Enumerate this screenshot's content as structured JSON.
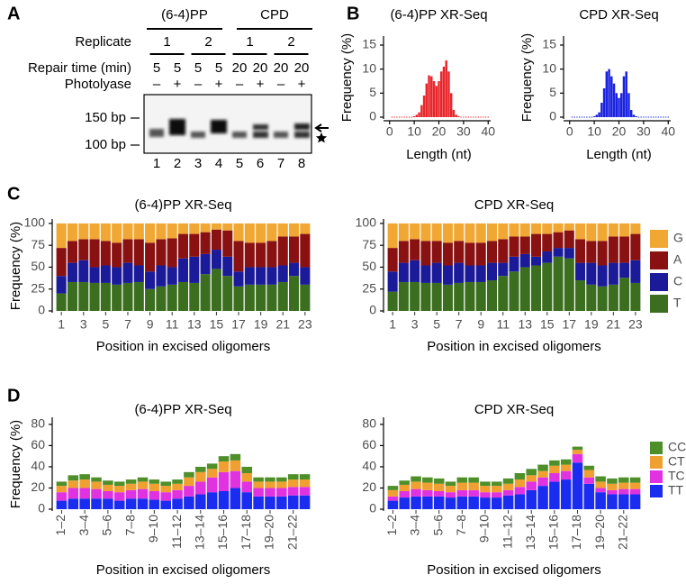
{
  "panel_labels": [
    "A",
    "B",
    "C",
    "D"
  ],
  "gel": {
    "groups": [
      "(6-4)PP",
      "CPD"
    ],
    "replicate_label": "Replicate",
    "replicates": [
      "1",
      "2",
      "1",
      "2"
    ],
    "time_label": "Repair time (min)",
    "times": [
      5,
      5,
      5,
      5,
      20,
      20,
      20,
      20
    ],
    "photolyase_label": "Photolyase",
    "photolyase": [
      "–",
      "+",
      "–",
      "+",
      "–",
      "+",
      "–",
      "+"
    ],
    "markers": [
      "150 bp",
      "100 bp"
    ],
    "lanes": [
      1,
      2,
      3,
      4,
      5,
      6,
      7,
      8
    ]
  },
  "chart_data": [
    {
      "type": "histogram",
      "title": "(6-4)PP XR-Seq",
      "xlabel": "Length (nt)",
      "ylabel": "Frequency (%)",
      "x": [
        1,
        2,
        3,
        4,
        5,
        6,
        7,
        8,
        9,
        10,
        11,
        12,
        13,
        14,
        15,
        16,
        17,
        18,
        19,
        20,
        21,
        22,
        23,
        24,
        25,
        26,
        27,
        28,
        29,
        30,
        31,
        32,
        33,
        34,
        35,
        36,
        37,
        38,
        39,
        40
      ],
      "values": [
        0,
        0,
        0,
        0,
        0,
        0,
        0,
        0,
        0,
        0.2,
        0.5,
        1,
        2.5,
        4.5,
        7,
        8.7,
        8.5,
        7.5,
        6.5,
        7.5,
        9.5,
        10.5,
        11.8,
        9.5,
        5,
        1.5,
        0.5,
        0.2,
        0,
        0,
        0,
        0,
        0,
        0,
        0,
        0,
        0,
        0,
        0,
        0
      ],
      "color": "#e8262b",
      "xlim": [
        -1,
        41
      ],
      "xticks": [
        0,
        10,
        20,
        30,
        40
      ],
      "ylim": [
        0,
        16.5
      ],
      "yticks": [
        0,
        5,
        10,
        15
      ]
    },
    {
      "type": "histogram",
      "title": "CPD XR-Seq",
      "xlabel": "Length (nt)",
      "ylabel": "Frequency (%)",
      "x": [
        1,
        2,
        3,
        4,
        5,
        6,
        7,
        8,
        9,
        10,
        11,
        12,
        13,
        14,
        15,
        16,
        17,
        18,
        19,
        20,
        21,
        22,
        23,
        24,
        25,
        26,
        27,
        28,
        29,
        30,
        31,
        32,
        33,
        34,
        35,
        36,
        37,
        38,
        39,
        40
      ],
      "values": [
        0,
        0,
        0,
        0,
        0,
        0,
        0,
        0,
        0,
        0.2,
        0.5,
        1,
        3,
        6,
        9.5,
        10,
        8.5,
        7,
        5,
        4,
        5,
        8.5,
        9.5,
        5,
        1.5,
        0.5,
        0.2,
        0,
        0,
        0,
        0,
        0,
        0,
        0,
        0,
        0,
        0,
        0,
        0,
        0
      ],
      "color": "#1a22e0",
      "xlim": [
        -1,
        41
      ],
      "xticks": [
        0,
        10,
        20,
        30,
        40
      ],
      "ylim": [
        0,
        16.5
      ],
      "yticks": [
        0,
        5,
        10,
        15
      ]
    },
    {
      "type": "stacked_bar",
      "title": "(6-4)PP XR-Seq",
      "xlabel": "Position in excised oligomers",
      "ylabel": "Frequency (%)",
      "categories": [
        1,
        null,
        3,
        null,
        5,
        null,
        7,
        null,
        9,
        null,
        11,
        null,
        13,
        null,
        15,
        null,
        17,
        null,
        19,
        null,
        21,
        null,
        23
      ],
      "series": [
        {
          "color": "#3b6f1f",
          "values": [
            20,
            33,
            33,
            32,
            32,
            30,
            32,
            33,
            25,
            28,
            30,
            33,
            32,
            42,
            48,
            40,
            28,
            30,
            30,
            30,
            33,
            40,
            30
          ]
        },
        {
          "color": "#1b1b9a",
          "values": [
            20,
            22,
            25,
            18,
            20,
            20,
            23,
            19,
            20,
            24,
            20,
            27,
            30,
            23,
            22,
            22,
            17,
            20,
            20,
            20,
            19,
            15,
            20
          ]
        },
        {
          "color": "#8a1111",
          "values": [
            32,
            25,
            24,
            32,
            28,
            28,
            27,
            30,
            33,
            30,
            33,
            28,
            26,
            25,
            23,
            30,
            35,
            28,
            28,
            30,
            33,
            30,
            38
          ]
        },
        {
          "color": "#f0a733",
          "values": [
            28,
            20,
            18,
            18,
            20,
            22,
            18,
            18,
            22,
            18,
            17,
            12,
            12,
            10,
            7,
            8,
            20,
            22,
            22,
            20,
            15,
            15,
            12
          ]
        }
      ],
      "ylim": [
        0,
        103
      ],
      "yticks": [
        0,
        25,
        50,
        75,
        100
      ]
    },
    {
      "type": "stacked_bar",
      "title": "CPD XR-Seq",
      "xlabel": "Position in excised oligomers",
      "categories": [
        1,
        null,
        3,
        null,
        5,
        null,
        7,
        null,
        9,
        null,
        11,
        null,
        13,
        null,
        15,
        null,
        17,
        null,
        19,
        null,
        21,
        null,
        23
      ],
      "series": [
        {
          "name": "T",
          "color": "#3b6f1f",
          "values": [
            22,
            33,
            33,
            32,
            32,
            30,
            32,
            33,
            33,
            35,
            40,
            45,
            50,
            52,
            55,
            62,
            60,
            35,
            30,
            28,
            30,
            38,
            32
          ]
        },
        {
          "name": "C",
          "color": "#1b1b9a",
          "values": [
            23,
            22,
            25,
            20,
            23,
            22,
            23,
            19,
            19,
            20,
            15,
            17,
            15,
            10,
            13,
            10,
            12,
            20,
            25,
            24,
            25,
            17,
            26
          ]
        },
        {
          "name": "A",
          "color": "#8a1111",
          "values": [
            27,
            25,
            24,
            28,
            25,
            26,
            25,
            26,
            26,
            25,
            27,
            23,
            20,
            26,
            20,
            18,
            20,
            27,
            25,
            28,
            30,
            30,
            30
          ]
        },
        {
          "name": "G",
          "color": "#f0a733",
          "values": [
            28,
            20,
            18,
            20,
            20,
            22,
            20,
            22,
            22,
            20,
            18,
            15,
            15,
            12,
            12,
            10,
            8,
            18,
            20,
            20,
            15,
            15,
            12
          ]
        }
      ],
      "ylim": [
        0,
        103
      ],
      "yticks": [
        0,
        25,
        50,
        75,
        100
      ],
      "legend": "right"
    },
    {
      "type": "stacked_bar",
      "title": "(6-4)PP XR-Seq",
      "xlabel": "Position in excised oligomers",
      "ylabel": "Frequency (%)",
      "categories": [
        "1–2",
        null,
        "3–4",
        null,
        "5–6",
        null,
        "7–8",
        null,
        "9–10",
        null,
        "11–12",
        null,
        "13–14",
        null,
        "15–16",
        null,
        "17–18",
        null,
        "19–20",
        null,
        "21–22",
        null
      ],
      "series": [
        {
          "color": "#1a2cf0",
          "values": [
            8,
            10,
            10,
            10,
            10,
            8,
            10,
            10,
            9,
            8,
            10,
            12,
            14,
            16,
            17,
            20,
            16,
            12,
            12,
            12,
            13,
            13
          ]
        },
        {
          "color": "#e032e0",
          "values": [
            8,
            10,
            10,
            9,
            7,
            8,
            8,
            9,
            8,
            8,
            8,
            10,
            12,
            14,
            18,
            16,
            10,
            8,
            8,
            8,
            8,
            8
          ]
        },
        {
          "color": "#f0a030",
          "values": [
            6,
            7,
            8,
            7,
            6,
            6,
            6,
            7,
            7,
            6,
            6,
            8,
            9,
            8,
            10,
            10,
            8,
            6,
            6,
            6,
            7,
            7
          ]
        },
        {
          "color": "#4e8f2a",
          "values": [
            4,
            5,
            5,
            4,
            4,
            4,
            4,
            4,
            4,
            4,
            4,
            5,
            5,
            5,
            5,
            6,
            6,
            4,
            4,
            4,
            5,
            5
          ]
        }
      ],
      "ylim": [
        0,
        85
      ],
      "yticks": [
        0,
        20,
        40,
        60,
        80
      ]
    },
    {
      "type": "stacked_bar",
      "title": "CPD XR-Seq",
      "xlabel": "Position in excised oligomers",
      "categories": [
        "1–2",
        null,
        "3–4",
        null,
        "5–6",
        null,
        "7–8",
        null,
        "9–10",
        null,
        "11–12",
        null,
        "13–14",
        null,
        "15–16",
        null,
        "17–18",
        null,
        "19–20",
        null,
        "21–22",
        null
      ],
      "series": [
        {
          "name": "TT",
          "color": "#1a2cf0",
          "values": [
            8,
            11,
            12,
            12,
            12,
            11,
            12,
            12,
            11,
            11,
            13,
            14,
            18,
            22,
            26,
            28,
            44,
            24,
            16,
            14,
            14,
            14
          ]
        },
        {
          "name": "TC",
          "color": "#e032e0",
          "values": [
            4,
            6,
            7,
            6,
            5,
            5,
            6,
            6,
            5,
            5,
            5,
            7,
            8,
            8,
            8,
            8,
            8,
            6,
            4,
            4,
            5,
            5
          ]
        },
        {
          "name": "CT",
          "color": "#f0a030",
          "values": [
            6,
            6,
            7,
            7,
            7,
            6,
            7,
            7,
            6,
            6,
            6,
            7,
            6,
            6,
            7,
            6,
            4,
            7,
            6,
            6,
            6,
            6
          ]
        },
        {
          "name": "CC",
          "color": "#4e8f2a",
          "values": [
            4,
            4,
            5,
            5,
            5,
            4,
            5,
            5,
            4,
            4,
            5,
            6,
            6,
            6,
            5,
            5,
            3,
            4,
            5,
            5,
            5,
            5
          ]
        }
      ],
      "ylim": [
        0,
        85
      ],
      "yticks": [
        0,
        20,
        40,
        60,
        80
      ],
      "legend": "right"
    }
  ]
}
